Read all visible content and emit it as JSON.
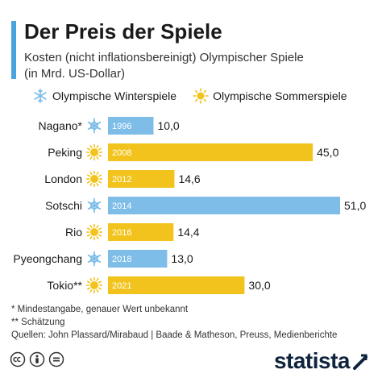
{
  "header": {
    "title": "Der Preis der Spiele",
    "subtitle_line1": "Kosten (nicht inflationsbereinigt) Olympischer Spiele",
    "subtitle_line2": "(in Mrd. US-Dollar)"
  },
  "legend": {
    "winter_label": "Olympische Winterspiele",
    "summer_label": "Olympische Sommerspiele",
    "winter_icon": "snowflake-icon",
    "summer_icon": "sun-icon"
  },
  "chart_data": {
    "type": "bar",
    "orientation": "horizontal",
    "categories": [
      "Nagano*",
      "Peking",
      "London",
      "Sotschi",
      "Rio",
      "Pyeongchang",
      "Tokio**"
    ],
    "years": [
      "1996",
      "2008",
      "2012",
      "2014",
      "2016",
      "2018",
      "2021"
    ],
    "season": [
      "winter",
      "summer",
      "summer",
      "winter",
      "summer",
      "winter",
      "summer"
    ],
    "values": [
      10.0,
      45.0,
      14.6,
      51.0,
      14.4,
      13.0,
      30.0
    ],
    "value_labels": [
      "10,0",
      "45,0",
      "14,6",
      "51,0",
      "14,4",
      "13,0",
      "30,0"
    ],
    "xlim": [
      0,
      51
    ],
    "grid": false,
    "legend_position": "top"
  },
  "colors": {
    "winter": "#7dbde8",
    "summer": "#f2c31c",
    "accent": "#4aa3df",
    "brand": "#10233d"
  },
  "footnotes": {
    "note1": "*   Mindestangabe, genauer Wert unbekannt",
    "note2": "** Schätzung",
    "sources": "Quellen: John Plassard/Mirabaud | Baade & Matheson, Preuss, Medienberichte"
  },
  "footer": {
    "brand": "statista",
    "license_icons": [
      "cc-icon",
      "by-icon",
      "equals-icon"
    ]
  }
}
